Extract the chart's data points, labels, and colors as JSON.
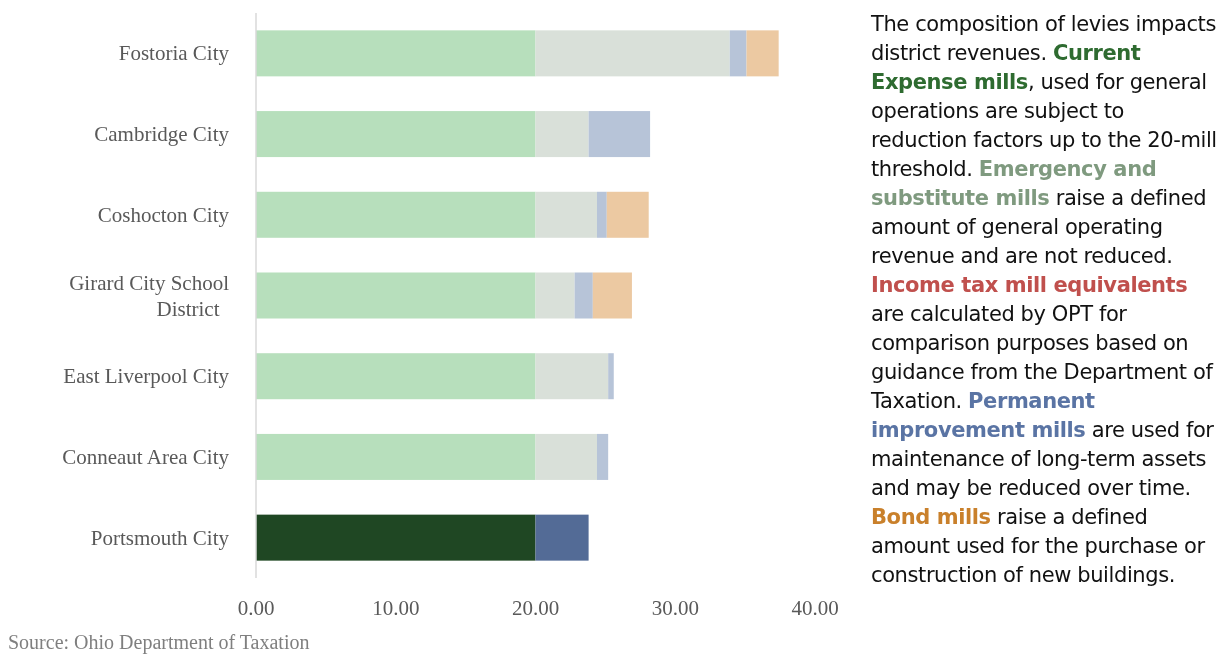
{
  "chart_data": {
    "type": "bar",
    "orientation": "horizontal",
    "stacked": true,
    "categories": [
      "Fostoria City",
      "Cambridge City",
      "Coshocton City",
      "Girard City School District",
      "East Liverpool City",
      "Conneaut Area City",
      "Portsmouth City"
    ],
    "series": [
      {
        "colors": [
          "#b7dfbc",
          "#b7dfbc",
          "#b7dfbc",
          "#b7dfbc",
          "#b7dfbc",
          "#b7dfbc",
          "#1f4723"
        ],
        "values": [
          20,
          20,
          20,
          20,
          20,
          20,
          20
        ]
      },
      {
        "colors": [
          "#d9e0d9",
          "#d9e0d9",
          "#d9e0d9",
          "#d9e0d9",
          "#d9e0d9",
          "#d9e0d9",
          null
        ],
        "values": [
          13.9,
          3.8,
          4.4,
          2.8,
          5.2,
          4.4,
          null
        ]
      },
      {
        "colors": [
          "#b7c4d8",
          "#b7c4d8",
          "#b7c4d8",
          "#b7c4d8",
          "#b7c4d8",
          "#b7c4d8",
          "#536b96"
        ],
        "values": [
          1.2,
          4.4,
          0.7,
          1.3,
          0.4,
          0.8,
          3.8
        ]
      },
      {
        "colors": [
          "#ecc9a2",
          null,
          "#ecc9a2",
          "#ecc9a2",
          null,
          null,
          null
        ],
        "values": [
          2.3,
          null,
          3.0,
          2.8,
          null,
          null,
          null
        ]
      }
    ],
    "xlim": [
      0,
      40
    ],
    "xticks": [
      {
        "value": 0,
        "label": "0.00"
      },
      {
        "value": 10,
        "label": "10.00"
      },
      {
        "value": 20,
        "label": "20.00"
      },
      {
        "value": 30,
        "label": "30.00"
      },
      {
        "value": 40,
        "label": "40.00"
      }
    ],
    "grid": false,
    "annotations": [
      "Source: Ohio Department of Taxation",
      "The composition of levies impacts district revenues. ",
      "Current Expense mills",
      ", used for general operations are subject to reduction factors up to the 20-mill threshold. ",
      "Emergency and substitute mills",
      " raise a defined amount of general operating revenue and are not reduced. ",
      "Income tax mill equivalents",
      " are calculated by OPT for comparison purposes based on guidance from the Department of Taxation. ",
      "Permanent improvement mills",
      " are used for maintenance of long-term assets and may be reduced over time. ",
      "Bond mills",
      " raise a defined amount used for the purchase or construction of new buildings."
    ]
  }
}
